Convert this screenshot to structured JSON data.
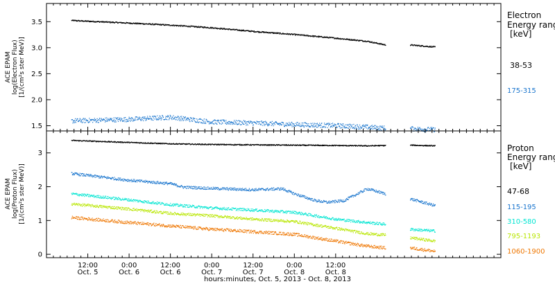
{
  "chart_data": [
    {
      "type": "scatter",
      "panel": "electron",
      "ylabel_lines": [
        "ACE EPAM",
        "log(Electron Flux)",
        "[1/(cm²s ster MeV)]"
      ],
      "ylim": [
        1.4,
        3.85
      ],
      "yticks": [
        "1.5",
        "2.0",
        "2.5",
        "3.0",
        "3.5"
      ],
      "yticks_values": [
        1.5,
        2.0,
        2.5,
        3.0,
        3.5
      ],
      "legend_title": [
        "Electron",
        "Energy range",
        "[keV]"
      ],
      "series": [
        {
          "name": "38-53",
          "color": "#000000",
          "spread": 0.012,
          "segments": [
            {
              "x": [
                0.3,
                1.0,
                1.5,
                2.0,
                2.5,
                3.0,
                3.5,
                3.88,
                4.1
              ],
              "y": [
                3.53,
                3.48,
                3.44,
                3.39,
                3.32,
                3.26,
                3.19,
                3.13,
                3.06
              ]
            },
            {
              "x": [
                4.4,
                4.7
              ],
              "y": [
                3.06,
                3.02
              ]
            }
          ]
        },
        {
          "name": "175-315",
          "color": "#1874cd",
          "spread": 0.045,
          "segments": [
            {
              "x": [
                0.3,
                1.0,
                1.5,
                2.0,
                2.5,
                3.0,
                3.5,
                3.88,
                4.1
              ],
              "y": [
                1.6,
                1.63,
                1.67,
                1.58,
                1.56,
                1.53,
                1.51,
                1.48,
                1.46
              ]
            },
            {
              "x": [
                4.4,
                4.7
              ],
              "y": [
                1.45,
                1.43
              ]
            }
          ]
        }
      ]
    },
    {
      "type": "scatter",
      "panel": "proton",
      "ylabel_lines": [
        "ACE EPAM",
        "log(Proton Flux)",
        "[1/(cm²s ster MeV)]"
      ],
      "ylim": [
        -0.1,
        3.65
      ],
      "yticks": [
        "0",
        "1",
        "2",
        "3"
      ],
      "yticks_values": [
        0,
        1,
        2,
        3
      ],
      "legend_title": [
        "Proton",
        "Energy range",
        "[keV]"
      ],
      "series": [
        {
          "name": "47-68",
          "color": "#000000",
          "spread": 0.015,
          "segments": [
            {
              "x": [
                0.3,
                1.0,
                1.5,
                2.0,
                2.5,
                3.0,
                3.5,
                3.88,
                4.1
              ],
              "y": [
                3.38,
                3.32,
                3.28,
                3.26,
                3.25,
                3.24,
                3.23,
                3.22,
                3.23
              ]
            },
            {
              "x": [
                4.4,
                4.7
              ],
              "y": [
                3.24,
                3.22
              ]
            }
          ]
        },
        {
          "name": "115-195",
          "color": "#1874cd",
          "spread": 0.04,
          "segments": [
            {
              "x": [
                0.3,
                1.0,
                1.5,
                1.65,
                2.0,
                2.5,
                2.85,
                3.0,
                3.25,
                3.4,
                3.6,
                3.88,
                4.1
              ],
              "y": [
                2.4,
                2.2,
                2.1,
                2.0,
                1.96,
                1.92,
                1.95,
                1.8,
                1.6,
                1.55,
                1.6,
                1.95,
                1.8
              ]
            },
            {
              "x": [
                4.4,
                4.7
              ],
              "y": [
                1.65,
                1.45
              ]
            }
          ]
        },
        {
          "name": "310-580",
          "color": "#00e5d2",
          "spread": 0.04,
          "segments": [
            {
              "x": [
                0.3,
                1.0,
                1.5,
                2.0,
                2.5,
                3.0,
                3.5,
                3.88,
                4.1
              ],
              "y": [
                1.8,
                1.62,
                1.48,
                1.38,
                1.32,
                1.25,
                1.05,
                0.95,
                0.9
              ]
            },
            {
              "x": [
                4.4,
                4.7
              ],
              "y": [
                0.75,
                0.7
              ]
            }
          ]
        },
        {
          "name": "795-1193",
          "color": "#b8e600",
          "spread": 0.04,
          "segments": [
            {
              "x": [
                0.3,
                1.0,
                1.5,
                2.0,
                2.5,
                3.0,
                3.5,
                3.88,
                4.1
              ],
              "y": [
                1.5,
                1.35,
                1.22,
                1.15,
                1.05,
                0.98,
                0.78,
                0.62,
                0.58
              ]
            },
            {
              "x": [
                4.4,
                4.7
              ],
              "y": [
                0.5,
                0.4
              ]
            }
          ]
        },
        {
          "name": "1060-1900",
          "color": "#ee7600",
          "spread": 0.045,
          "segments": [
            {
              "x": [
                0.3,
                1.0,
                1.5,
                2.0,
                2.5,
                3.0,
                3.5,
                3.88,
                4.1
              ],
              "y": [
                1.1,
                0.95,
                0.85,
                0.75,
                0.68,
                0.6,
                0.4,
                0.25,
                0.2
              ]
            },
            {
              "x": [
                4.4,
                4.7
              ],
              "y": [
                0.2,
                0.1
              ]
            }
          ]
        }
      ]
    }
  ],
  "x_axis": {
    "xlim": [
      0.0,
      5.5
    ],
    "ticks": [
      {
        "x": 0.5,
        "time": "12:00",
        "date": "Oct. 5"
      },
      {
        "x": 1.0,
        "time": "0:00",
        "date": "Oct. 6"
      },
      {
        "x": 1.5,
        "time": "12:00",
        "date": "Oct. 6"
      },
      {
        "x": 2.0,
        "time": "0:00",
        "date": "Oct. 7"
      },
      {
        "x": 2.5,
        "time": "12:00",
        "date": "Oct. 7"
      },
      {
        "x": 3.0,
        "time": "0:00",
        "date": "Oct. 8"
      },
      {
        "x": 3.5,
        "time": "12:00",
        "date": "Oct. 8"
      }
    ],
    "xlabel": "hours:minutes, Oct.  5, 2013 - Oct.  8, 2013"
  }
}
